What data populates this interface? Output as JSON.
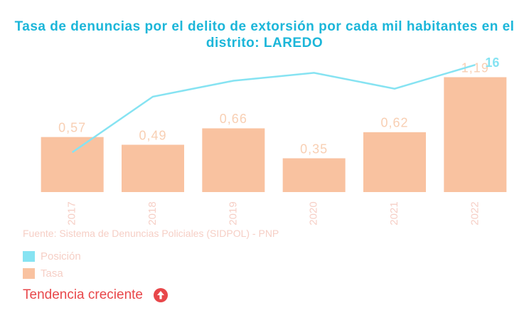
{
  "chart_data": {
    "type": "bar",
    "title": "Tasa de denuncias por el delito de extorsión por cada mil habitantes en el distrito: LAREDO",
    "categories": [
      "2017",
      "2018",
      "2019",
      "2020",
      "2021",
      "2022"
    ],
    "series": [
      {
        "name": "Posición",
        "type": "line",
        "axis": "y2",
        "color": "#86e3f2",
        "values": [
          5,
          12,
          14,
          15,
          13,
          16
        ],
        "value_labels": [
          null,
          null,
          null,
          null,
          null,
          "16"
        ]
      },
      {
        "name": "Tasa",
        "type": "bar",
        "color": "#f9c2a0",
        "values": [
          0.57,
          0.49,
          0.66,
          0.35,
          0.62,
          1.19
        ],
        "value_labels": [
          "0,57",
          "0,49",
          "0,66",
          "0,35",
          "0,62",
          "1,19"
        ]
      }
    ],
    "ylim": [
      0,
      1.4
    ],
    "y2lim": [
      0,
      17
    ],
    "source": "Fuente: Sistema de Denuncias Policiales (SIDPOL) - PNP",
    "trend": "Tendencia creciente"
  }
}
